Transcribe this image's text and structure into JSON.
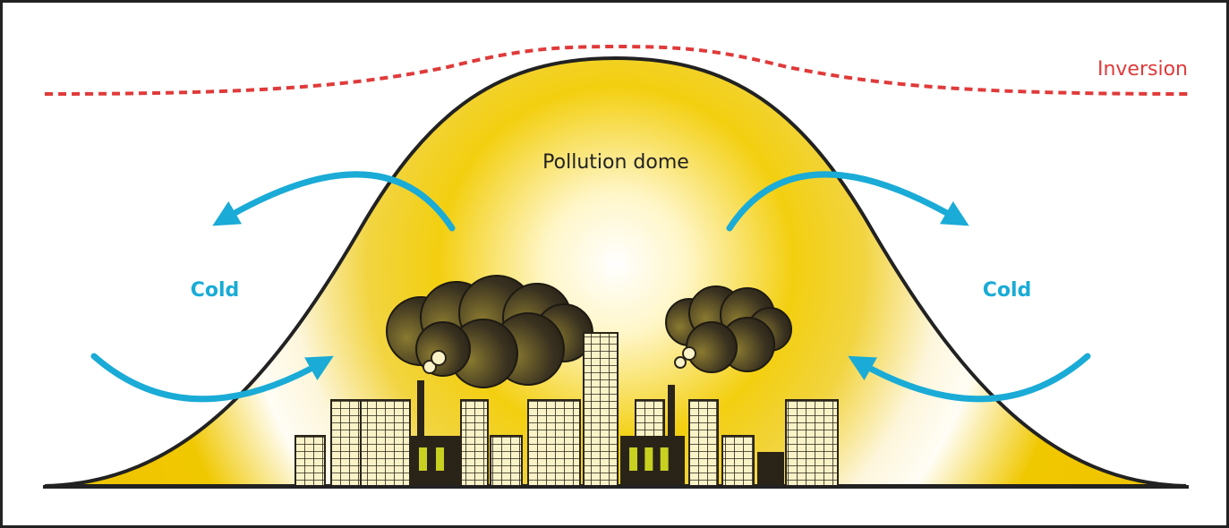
{
  "labels": {
    "inversion": "Inversion",
    "dome": "Pollution dome",
    "cold_left": "Cold",
    "cold_right": "Cold"
  }
}
